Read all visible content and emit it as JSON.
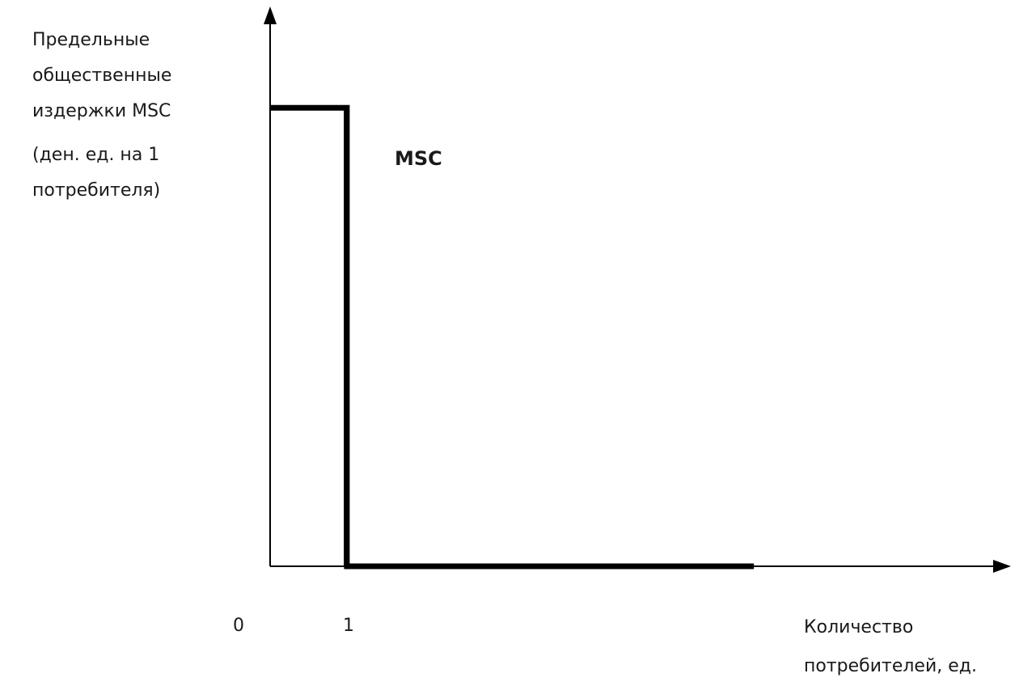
{
  "chart_data": {
    "type": "line",
    "ylabel_lines": [
      "Предельные",
      "общественные",
      "издержки  MSC",
      "(ден.  ед. на 1",
      "потребителя)"
    ],
    "xlabel_lines": [
      "Количество",
      "потребителей,  ед."
    ],
    "x_ticks": [
      "0",
      "1"
    ],
    "series": [
      {
        "name": "MSC",
        "x": [
          0,
          1,
          1,
          6.3
        ],
        "y": [
          1,
          1,
          0,
          0
        ]
      }
    ],
    "xlim": [
      0,
      9.5
    ],
    "ylim": [
      0,
      1.2
    ],
    "grid": false,
    "colors": {
      "line": "#000000",
      "axis": "#000000",
      "text": "#1a1a1a"
    }
  }
}
